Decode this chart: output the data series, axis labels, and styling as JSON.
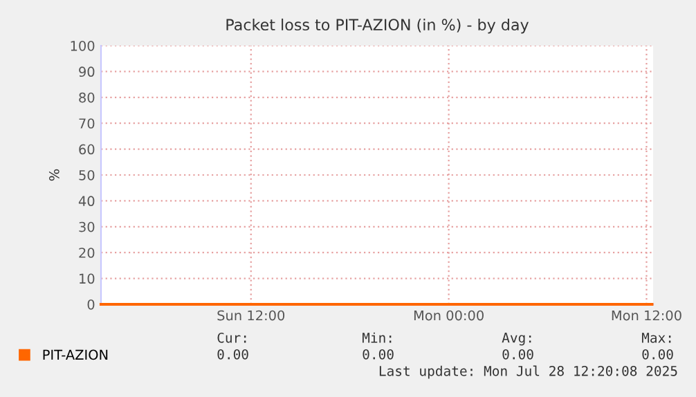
{
  "chart_data": {
    "type": "line",
    "title": "Packet loss to PIT-AZION (in %) - by day",
    "ylabel": "%",
    "x": [
      "2025-07-27T02:54",
      "2025-07-28T12:20"
    ],
    "series": [
      {
        "name": "PIT-AZION",
        "color": "#ff6600",
        "values": [
          0,
          0
        ]
      }
    ],
    "xlim": [
      "2025-07-27T02:54",
      "2025-07-28T12:24"
    ],
    "xticks": [
      {
        "value": "2025-07-27T12:00",
        "label": "Sun 12:00"
      },
      {
        "value": "2025-07-28T00:00",
        "label": "Mon 00:00"
      },
      {
        "value": "2025-07-28T12:00",
        "label": "Mon 12:00"
      }
    ],
    "ylim": [
      0,
      100
    ],
    "yticks": [
      0,
      10,
      20,
      30,
      40,
      50,
      60,
      70,
      80,
      90,
      100
    ],
    "grid": true,
    "legend": "bottom left",
    "marker": "none",
    "line_style": "solid",
    "annotations": [
      "Cur:",
      "Min:",
      "Avg:",
      "Max:",
      "0.00",
      "0.00",
      "0.00",
      "0.00",
      "Last update: Mon Jul 28 12:20:08 2025"
    ]
  }
}
